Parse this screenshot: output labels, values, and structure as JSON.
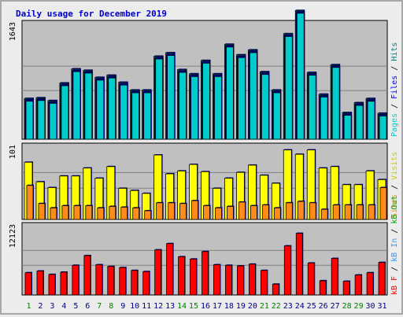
{
  "title": "Daily usage for December 2019",
  "colors": {
    "title": "#0000cc",
    "pages": "#00cccc",
    "files": "#0000ff",
    "hits": "#008080",
    "visits": "#ffff00",
    "sites": "#ff8c1a",
    "kb_in": "#3399ff",
    "kb_out": "#00aa00",
    "kb_f": "#ff0000",
    "panel_bg": "#c0c0c0",
    "day_normal": "#000080",
    "day_weekend": "#008000"
  },
  "right_legend": {
    "top": [
      {
        "text": "Pages",
        "color": "#00cccc"
      },
      {
        "text": " / ",
        "color": "#000000"
      },
      {
        "text": "Files",
        "color": "#0000ff"
      },
      {
        "text": " / ",
        "color": "#000000"
      },
      {
        "text": "Hits",
        "color": "#008080"
      }
    ],
    "middle": [
      {
        "text": "Sites",
        "color": "#ff8c1a"
      },
      {
        "text": " / ",
        "color": "#000000"
      },
      {
        "text": "Visits",
        "color": "#cccc00"
      }
    ],
    "bottom": [
      {
        "text": "kB F",
        "color": "#ff0000"
      },
      {
        "text": " / ",
        "color": "#000000"
      },
      {
        "text": "kB In",
        "color": "#3399ff"
      },
      {
        "text": " / ",
        "color": "#000000"
      },
      {
        "text": "kB Out",
        "color": "#00aa00"
      }
    ]
  },
  "chart_data": {
    "type": "bar",
    "x": [
      "1",
      "2",
      "3",
      "4",
      "5",
      "6",
      "7",
      "8",
      "9",
      "10",
      "11",
      "12",
      "13",
      "14",
      "15",
      "16",
      "17",
      "18",
      "19",
      "20",
      "21",
      "22",
      "23",
      "24",
      "25",
      "26",
      "27",
      "28",
      "29",
      "30",
      "31"
    ],
    "weekend_days": [
      "1",
      "7",
      "8",
      "14",
      "15",
      "21",
      "22",
      "28",
      "29"
    ],
    "panels": [
      {
        "ymax_label": "1643",
        "ymax": 1643,
        "series": [
          {
            "name": "Hits",
            "values": [
              580,
              590,
              550,
              800,
              1000,
              980,
              880,
              910,
              810,
              700,
              700,
              1180,
              1230,
              990,
              930,
              1120,
              930,
              1350,
              1200,
              1270,
              960,
              700,
              1500,
              1830,
              950,
              640,
              1060,
              380,
              520,
              580,
              370
            ]
          },
          {
            "name": "Files",
            "values": [
              560,
              570,
              530,
              780,
              980,
              960,
              860,
              890,
              790,
              680,
              680,
              1160,
              1210,
              970,
              910,
              1100,
              910,
              1330,
              1180,
              1250,
              940,
              680,
              1480,
              1810,
              930,
              620,
              1040,
              360,
              500,
              560,
              350
            ]
          },
          {
            "name": "Pages",
            "values": [
              540,
              550,
              510,
              760,
              960,
              940,
              840,
              870,
              770,
              660,
              660,
              1140,
              1190,
              950,
              890,
              1080,
              890,
              1310,
              1160,
              1230,
              920,
              660,
              1460,
              1790,
              910,
              600,
              1020,
              340,
              480,
              540,
              330
            ]
          }
        ]
      },
      {
        "ymax_label": "101",
        "ymax": 101,
        "series": [
          {
            "name": "Visits",
            "values": [
              79,
              52,
              44,
              60,
              60,
              71,
              57,
              73,
              43,
              40,
              36,
              89,
              63,
              67,
              76,
              66,
              43,
              57,
              65,
              75,
              61,
              50,
              96,
              90,
              96,
              71,
              73,
              48,
              48,
              67,
              55
            ]
          },
          {
            "name": "Sites",
            "values": [
              47,
              22,
              16,
              19,
              19,
              19,
              16,
              18,
              17,
              16,
              12,
              23,
              23,
              22,
              26,
              19,
              16,
              18,
              24,
              19,
              20,
              16,
              23,
              25,
              23,
              14,
              20,
              20,
              20,
              20,
              44
            ]
          }
        ]
      },
      {
        "ymax_label": "12123",
        "ymax": 12123,
        "series": [
          {
            "name": "kB F",
            "values": [
              3900,
              4200,
              3600,
              4000,
              5200,
              6900,
              5300,
              5000,
              4800,
              4300,
              4100,
              7900,
              9000,
              6700,
              6300,
              7600,
              5300,
              5200,
              5100,
              5400,
              4300,
              1900,
              8600,
              10800,
              5600,
              2500,
              6400,
              2400,
              3500,
              3900,
              5700
            ]
          }
        ]
      }
    ]
  }
}
